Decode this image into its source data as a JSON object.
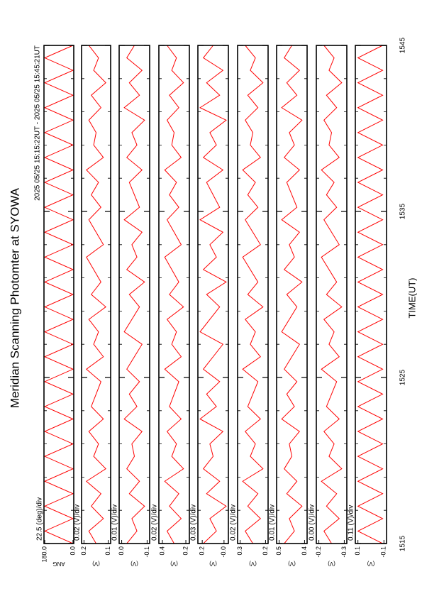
{
  "chart_data": {
    "type": "line",
    "title": "Meridian Scanning Photomter at SYOWA",
    "subtitle": "2025 05/25 15:15:22UT - 2025 05/25 15:45:21UT",
    "xlabel": "TIME(UT)",
    "xlim": [
      1515,
      1545
    ],
    "xticks": [
      1515,
      1525,
      1535,
      1545
    ],
    "xminorticks": [
      1517,
      1519,
      1521,
      1523,
      1527,
      1529,
      1531,
      1533,
      1537,
      1539,
      1541,
      1543
    ],
    "x": [
      1515,
      1515.75,
      1516.5,
      1517.25,
      1518,
      1518.75,
      1519.5,
      1520.25,
      1521,
      1521.75,
      1522.5,
      1523.25,
      1524,
      1524.75,
      1525.5,
      1526.25,
      1527,
      1527.75,
      1528.5,
      1529.25,
      1530,
      1530.75,
      1531.5,
      1532.25,
      1533,
      1533.75,
      1534.5,
      1535.25,
      1536,
      1536.75,
      1537.5,
      1538.25,
      1539,
      1539.75,
      1540.5,
      1541.25,
      1542,
      1542.75,
      1543.5,
      1544.25,
      1545
    ],
    "panels": [
      {
        "scale_label": "22.5 (deg)/div",
        "ylabel": "ANG",
        "ylim": [
          -5,
          185
        ],
        "yticks": [
          {
            "value": 180,
            "label": "180.0"
          },
          {
            "value": 0,
            "label": "0.0"
          }
        ],
        "series": [
          {
            "color": "#ff0000",
            "values": [
              0,
              180,
              0,
              180,
              0,
              180,
              0,
              180,
              0,
              180,
              0,
              180,
              0,
              180,
              0,
              180,
              0,
              180,
              0,
              180,
              0,
              180,
              0,
              180,
              0,
              180,
              0,
              180,
              0,
              180,
              0,
              180,
              0,
              180,
              0,
              180,
              0,
              180,
              0,
              180,
              0
            ]
          }
        ]
      },
      {
        "scale_label": "0.02 (V)/div",
        "ylabel": "(V)",
        "ylim": [
          0.09,
          0.21
        ],
        "yticks": [
          0.2,
          0.1
        ],
        "series": [
          {
            "color": "#ff0000",
            "values": [
              0.15,
              0.18,
              0.12,
              0.17,
              0.13,
              0.19,
              0.11,
              0.16,
              0.14,
              0.18,
              0.12,
              0.17,
              0.15,
              0.13,
              0.19,
              0.12,
              0.16,
              0.14,
              0.18,
              0.11,
              0.17,
              0.13,
              0.16,
              0.19,
              0.12,
              0.15,
              0.18,
              0.13,
              0.17,
              0.14,
              0.19,
              0.12,
              0.16,
              0.15,
              0.18,
              0.13,
              0.17,
              0.11,
              0.16,
              0.14,
              0.18
            ]
          }
        ]
      },
      {
        "scale_label": "0.01 (V)/div",
        "ylabel": "(V)",
        "ylim": [
          -0.11,
          0.01
        ],
        "yticks": [
          {
            "value": 0,
            "label": "0.0"
          },
          -0.1
        ],
        "series": [
          {
            "color": "#ff0000",
            "values": [
              -0.02,
              -0.06,
              -0.04,
              -0.09,
              -0.03,
              -0.07,
              -0.02,
              -0.05,
              -0.04,
              -0.08,
              -0.01,
              -0.06,
              -0.03,
              -0.07,
              -0.02,
              -0.05,
              -0.08,
              -0.01,
              -0.04,
              -0.07,
              -0.03,
              -0.09,
              -0.02,
              -0.06,
              -0.04,
              -0.08,
              -0.01,
              -0.07,
              -0.05,
              -0.03,
              -0.08,
              -0.02,
              -0.06,
              -0.04,
              -0.09,
              -0.01,
              -0.07,
              -0.03,
              -0.08,
              -0.02,
              -0.05
            ]
          }
        ]
      },
      {
        "scale_label": "0.02 (V)/div",
        "ylabel": "(V)",
        "ylim": [
          0.17,
          0.43
        ],
        "yticks": [
          0.4,
          0.2
        ],
        "series": [
          {
            "color": "#ff0000",
            "values": [
              0.3,
              0.36,
              0.24,
              0.34,
              0.26,
              0.38,
              0.22,
              0.32,
              0.28,
              0.36,
              0.24,
              0.34,
              0.3,
              0.26,
              0.38,
              0.24,
              0.32,
              0.28,
              0.36,
              0.22,
              0.34,
              0.26,
              0.32,
              0.38,
              0.24,
              0.3,
              0.36,
              0.26,
              0.34,
              0.28,
              0.38,
              0.24,
              0.32,
              0.3,
              0.36,
              0.26,
              0.34,
              0.22,
              0.32,
              0.28,
              0.36
            ]
          }
        ]
      },
      {
        "scale_label": "0.03 (V)/div",
        "ylabel": "(V)",
        "ylim": [
          -0.04,
          0.24
        ],
        "yticks": [
          0.2,
          {
            "value": 0,
            "label": "-0.0"
          }
        ],
        "series": [
          {
            "color": "#ff0000",
            "values": [
              0.19,
              0.07,
              0.13,
              -0.02,
              0.16,
              0.04,
              0.19,
              0.1,
              0.13,
              0.01,
              0.22,
              0.07,
              0.16,
              0.04,
              0.19,
              0.1,
              0.01,
              0.22,
              0.13,
              0.04,
              0.16,
              -0.02,
              0.19,
              0.07,
              0.13,
              0.01,
              0.22,
              0.04,
              0.1,
              0.16,
              0.01,
              0.19,
              0.07,
              0.13,
              -0.02,
              0.22,
              0.04,
              0.16,
              0.01,
              0.19,
              0.1
            ]
          }
        ]
      },
      {
        "scale_label": "0.02 (V)/div",
        "ylabel": "(V)",
        "ylim": [
          0.19,
          0.31
        ],
        "yticks": [
          0.3,
          0.2
        ],
        "series": [
          {
            "color": "#ff0000",
            "values": [
              0.25,
              0.28,
              0.22,
              0.27,
              0.23,
              0.29,
              0.21,
              0.26,
              0.24,
              0.28,
              0.22,
              0.27,
              0.25,
              0.23,
              0.29,
              0.22,
              0.26,
              0.24,
              0.28,
              0.21,
              0.27,
              0.23,
              0.26,
              0.29,
              0.22,
              0.25,
              0.28,
              0.23,
              0.27,
              0.24,
              0.29,
              0.22,
              0.26,
              0.25,
              0.28,
              0.23,
              0.27,
              0.21,
              0.26,
              0.24,
              0.28
            ]
          }
        ]
      },
      {
        "scale_label": "0.01 (V)/div",
        "ylabel": "(V)",
        "ylim": [
          0.39,
          0.51
        ],
        "yticks": [
          0.5,
          0.4
        ],
        "series": [
          {
            "color": "#ff0000",
            "values": [
              0.48,
              0.44,
              0.46,
              0.41,
              0.47,
              0.43,
              0.48,
              0.45,
              0.46,
              0.42,
              0.49,
              0.44,
              0.47,
              0.43,
              0.48,
              0.45,
              0.42,
              0.49,
              0.46,
              0.43,
              0.47,
              0.41,
              0.48,
              0.44,
              0.46,
              0.42,
              0.49,
              0.43,
              0.45,
              0.47,
              0.42,
              0.48,
              0.44,
              0.46,
              0.41,
              0.49,
              0.43,
              0.47,
              0.42,
              0.48,
              0.45
            ]
          }
        ]
      },
      {
        "scale_label": "0.00 (V)/div",
        "ylabel": "(V)",
        "ylim": [
          -0.31,
          -0.19
        ],
        "yticks": [
          -0.2,
          -0.3
        ],
        "series": [
          {
            "color": "#ff0000",
            "values": [
              -0.25,
              -0.22,
              -0.28,
              -0.23,
              -0.27,
              -0.21,
              -0.29,
              -0.24,
              -0.26,
              -0.22,
              -0.28,
              -0.23,
              -0.25,
              -0.27,
              -0.21,
              -0.28,
              -0.24,
              -0.26,
              -0.22,
              -0.29,
              -0.23,
              -0.27,
              -0.24,
              -0.21,
              -0.28,
              -0.25,
              -0.22,
              -0.27,
              -0.23,
              -0.26,
              -0.21,
              -0.28,
              -0.24,
              -0.25,
              -0.22,
              -0.27,
              -0.23,
              -0.29,
              -0.24,
              -0.26,
              -0.22
            ]
          }
        ]
      },
      {
        "scale_label": "0.11 (V)/div",
        "ylabel": "(V)",
        "ylim": [
          -0.12,
          0.12
        ],
        "yticks": [
          0.1,
          -0.1
        ],
        "series": [
          {
            "color": "#ff0000",
            "values": [
              -0.09,
              0.1,
              -0.09,
              0.1,
              -0.09,
              0.1,
              -0.09,
              0.1,
              -0.09,
              0.1,
              -0.09,
              0.1,
              -0.09,
              0.1,
              -0.09,
              0.1,
              -0.09,
              0.1,
              -0.09,
              0.1,
              -0.09,
              0.1,
              -0.09,
              0.1,
              -0.09,
              0.1,
              -0.09,
              0.1,
              -0.09,
              0.1,
              -0.09,
              0.1,
              -0.09,
              0.1,
              -0.09,
              0.1,
              -0.09,
              0.1,
              -0.09,
              0.1,
              -0.09
            ]
          }
        ]
      }
    ]
  }
}
